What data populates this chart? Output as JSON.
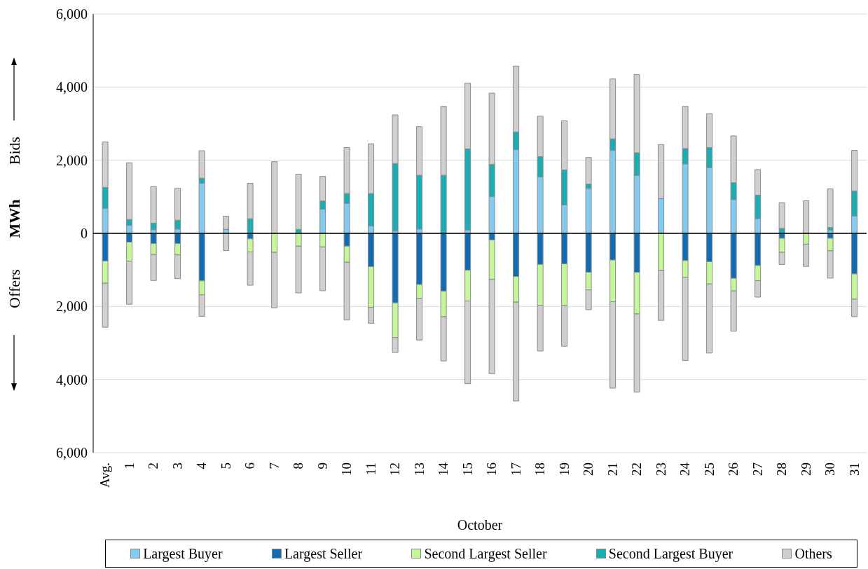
{
  "chart_data": {
    "type": "bar",
    "stacked": true,
    "xlabel": "October",
    "ylabel": "MWh",
    "annotations": [
      "Bids",
      "Offers"
    ],
    "categories": [
      "Avg.",
      "1",
      "2",
      "3",
      "4",
      "5",
      "6",
      "7",
      "8",
      "9",
      "10",
      "11",
      "12",
      "13",
      "14",
      "15",
      "16",
      "17",
      "18",
      "19",
      "20",
      "21",
      "22",
      "23",
      "24",
      "25",
      "26",
      "27",
      "28",
      "29",
      "30",
      "31"
    ],
    "series": [
      {
        "name": "Largest Buyer",
        "color": "#82caf0",
        "values": [
          685,
          220,
          100,
          120,
          1370,
          110,
          null,
          0,
          0,
          660,
          820,
          200,
          65,
          120,
          0,
          95,
          1010,
          2290,
          1545,
          780,
          1230,
          2270,
          1585,
          955,
          1900,
          1800,
          925,
          405,
          0,
          0,
          85,
          475
        ]
      },
      {
        "name": "Largest Seller",
        "color": "#116cb4",
        "values": [
          -755,
          -240,
          -280,
          -280,
          -1300,
          0,
          -150,
          0,
          0,
          0,
          -350,
          -910,
          -1900,
          -1400,
          -1580,
          -1010,
          -180,
          -1180,
          -850,
          -835,
          -1065,
          -730,
          -1065,
          null,
          -745,
          -775,
          -1230,
          -880,
          -135,
          0,
          -135,
          -1110
        ]
      },
      {
        "name": "Second Largest Seller",
        "color": "#c5f79a",
        "values": [
          -610,
          -520,
          -300,
          -310,
          -380,
          0,
          -360,
          -520,
          -350,
          -370,
          -440,
          -1115,
          -950,
          -380,
          -700,
          -840,
          -1075,
          -700,
          -1125,
          -1140,
          -480,
          -1140,
          -1140,
          -1015,
          -460,
          -610,
          -345,
          -415,
          -385,
          -295,
          -340,
          -690
        ]
      },
      {
        "name": "Second Largest Buyer",
        "color": "#1aadb2",
        "values": [
          570,
          160,
          180,
          240,
          140,
          0,
          400,
          null,
          110,
          225,
          270,
          890,
          1845,
          1470,
          1590,
          2215,
          875,
          485,
          555,
          955,
          115,
          315,
          620,
          0,
          420,
          545,
          460,
          640,
          135,
          0,
          75,
          685
        ]
      },
      {
        "name": "Others",
        "color": "#d0cecf",
        "values": [
          1245,
          1550,
          1000,
          870,
          750,
          360,
          970,
          1960,
          1510,
          675,
          1260,
          1360,
          1330,
          1330,
          1885,
          1800,
          1950,
          1800,
          1105,
          1345,
          730,
          1640,
          2135,
          1475,
          1155,
          930,
          1280,
          700,
          705,
          890,
          1055,
          1110
        ]
      },
      {
        "color": "#d0cecf",
        "values": [
          -1205,
          -1180,
          -710,
          -650,
          -590,
          -470,
          -910,
          -1520,
          -1280,
          -1200,
          -1580,
          -435,
          -410,
          -1140,
          -1210,
          -2265,
          -2585,
          -2705,
          -1245,
          -1115,
          -545,
          -2365,
          -2140,
          -1365,
          -2275,
          -1890,
          -1100,
          -450,
          -330,
          -610,
          -750,
          -480
        ]
      }
    ],
    "ylim": [
      -6000,
      6000
    ],
    "yticks": [
      {
        "value": -6000,
        "label": "6,000"
      },
      {
        "value": -4000,
        "label": "4,000"
      },
      {
        "value": -2000,
        "label": "2,000"
      },
      0,
      {
        "value": 2000,
        "label": "2,000"
      },
      {
        "value": 4000,
        "label": "4,000"
      },
      {
        "value": 6000,
        "label": "6,000"
      }
    ],
    "grid": "y",
    "legend": "bottom"
  }
}
